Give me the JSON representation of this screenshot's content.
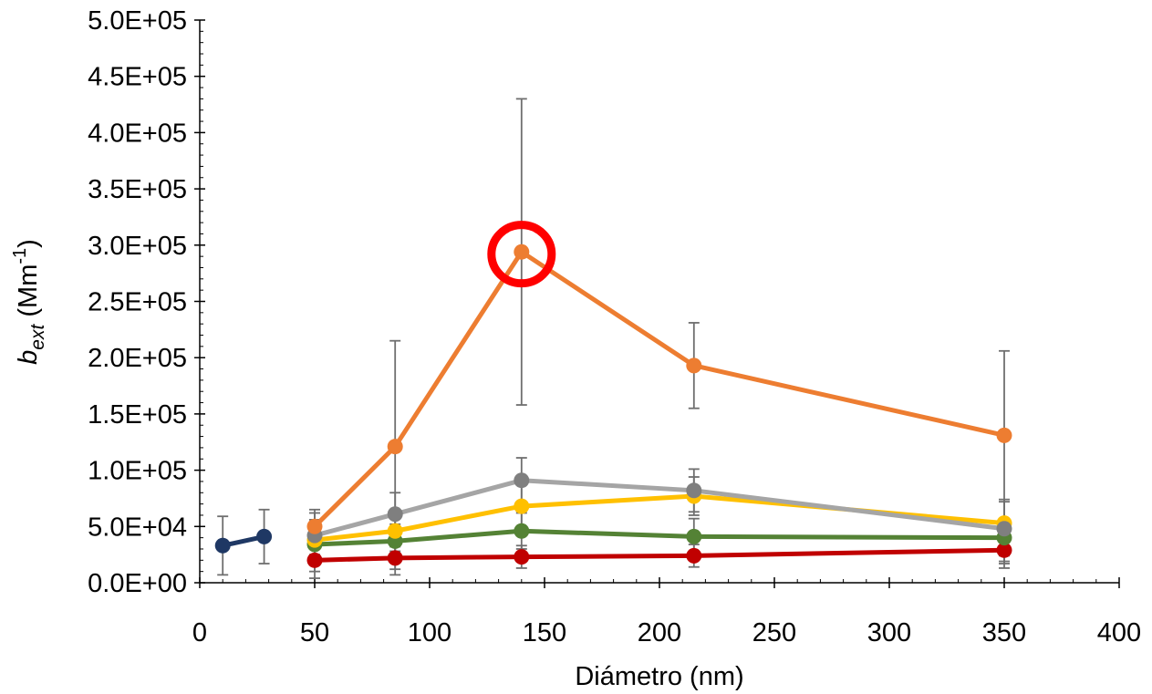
{
  "chart_data": {
    "type": "line",
    "xlabel": "Diámetro (nm)",
    "ylabel": {
      "symbol": "b",
      "subscript": "ext",
      "unit_open": " (Mm",
      "unit_sup": "-1",
      "unit_close": ")"
    },
    "xlim": [
      0,
      400
    ],
    "ylim": [
      0,
      500000
    ],
    "x_ticks": [
      0,
      50,
      100,
      150,
      200,
      250,
      300,
      350,
      400
    ],
    "x_tick_labels": [
      "0",
      "50",
      "100",
      "150",
      "200",
      "250",
      "300",
      "350",
      "400"
    ],
    "y_ticks": [
      0,
      50000,
      100000,
      150000,
      200000,
      250000,
      300000,
      350000,
      400000,
      450000,
      500000
    ],
    "y_tick_labels": [
      "0.0E+00",
      "5.0E+04",
      "1.0E+05",
      "1.5E+05",
      "2.0E+05",
      "2.5E+05",
      "3.0E+05",
      "3.5E+05",
      "4.0E+05",
      "4.5E+05",
      "5.0E+05"
    ],
    "grid": false,
    "legend": "none",
    "series": [
      {
        "color": "#1f3864",
        "x": [
          10,
          28
        ],
        "y": [
          33000,
          41000
        ],
        "err_low": [
          7000,
          17000
        ],
        "err_high": [
          59000,
          65000
        ]
      },
      {
        "color": "#c00000",
        "x": [
          50,
          85,
          140,
          215,
          350
        ],
        "y": [
          20000,
          22000,
          23000,
          24000,
          29000
        ],
        "err_low": [
          10000,
          12000,
          13000,
          14000,
          19000
        ],
        "err_high": [
          30000,
          32000,
          33000,
          34000,
          39000
        ]
      },
      {
        "color": "#548235",
        "x": [
          50,
          85,
          140,
          215,
          350
        ],
        "y": [
          34000,
          37000,
          46000,
          41000,
          40000
        ],
        "err_low": [
          20000,
          22000,
          30000,
          25000,
          24000
        ],
        "err_high": [
          48000,
          52000,
          62000,
          57000,
          56000
        ]
      },
      {
        "color": "#ffc000",
        "x": [
          50,
          85,
          140,
          215,
          350
        ],
        "y": [
          38000,
          46000,
          68000,
          77000,
          53000
        ],
        "err_low": [
          20000,
          28000,
          45000,
          60000,
          30000
        ],
        "err_high": [
          56000,
          64000,
          91000,
          94000,
          72000
        ]
      },
      {
        "color": "#a5a5a5",
        "x": [
          50,
          85,
          140,
          215,
          350
        ],
        "y": [
          42000,
          61000,
          91000,
          82000,
          48000
        ],
        "err_low": [
          25000,
          40000,
          70000,
          63000,
          13000
        ],
        "err_high": [
          62000,
          80000,
          111000,
          101000,
          74000
        ]
      },
      {
        "color": "#ed7d31",
        "x": [
          50,
          85,
          140,
          215,
          350
        ],
        "y": [
          50000,
          121000,
          294000,
          193000,
          131000
        ],
        "err_low": [
          4000,
          7000,
          158000,
          155000,
          17000
        ],
        "err_high": [
          65000,
          215000,
          430000,
          231000,
          206000
        ]
      }
    ],
    "highlight": {
      "x": 140,
      "y": 292000,
      "color": "#ff0000"
    },
    "marker_colors": {
      "#a5a5a5": "#7f7f7f"
    }
  }
}
